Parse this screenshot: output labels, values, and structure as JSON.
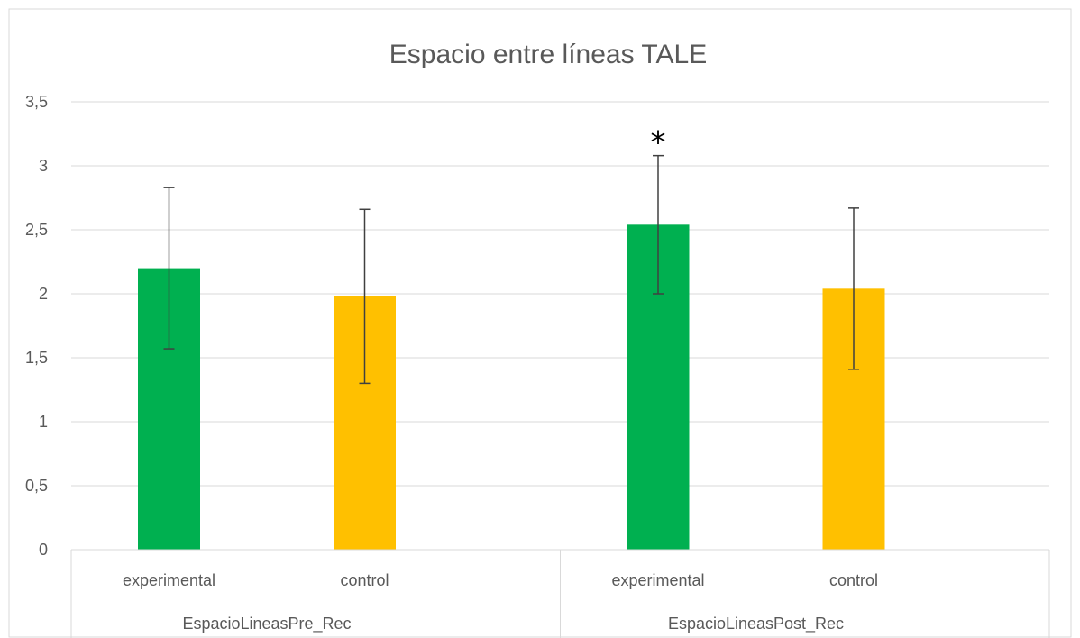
{
  "chart_data": {
    "type": "bar",
    "title": "Espacio entre líneas TALE",
    "xlabel": "",
    "ylabel": "",
    "ylim": [
      0,
      3.5
    ],
    "yticks": [
      "0",
      "0,5",
      "1",
      "1,5",
      "2",
      "2,5",
      "3",
      "3,5"
    ],
    "yticks_values": [
      0,
      0.5,
      1,
      1.5,
      2,
      2.5,
      3,
      3.5
    ],
    "grid": true,
    "legend": "none",
    "groups": [
      {
        "label": "EspacioLineasPre_Rec",
        "bars": [
          {
            "category": "experimental",
            "value": 2.2,
            "error": 0.63,
            "color": "#00b050",
            "annotation": ""
          },
          {
            "category": "control",
            "value": 1.98,
            "error": 0.68,
            "color": "#ffc000",
            "annotation": ""
          }
        ]
      },
      {
        "label": "EspacioLineasPost_Rec",
        "bars": [
          {
            "category": "experimental",
            "value": 2.54,
            "error": 0.54,
            "color": "#00b050",
            "annotation": "*"
          },
          {
            "category": "control",
            "value": 2.04,
            "error": 0.63,
            "color": "#ffc000",
            "annotation": ""
          }
        ]
      }
    ]
  }
}
